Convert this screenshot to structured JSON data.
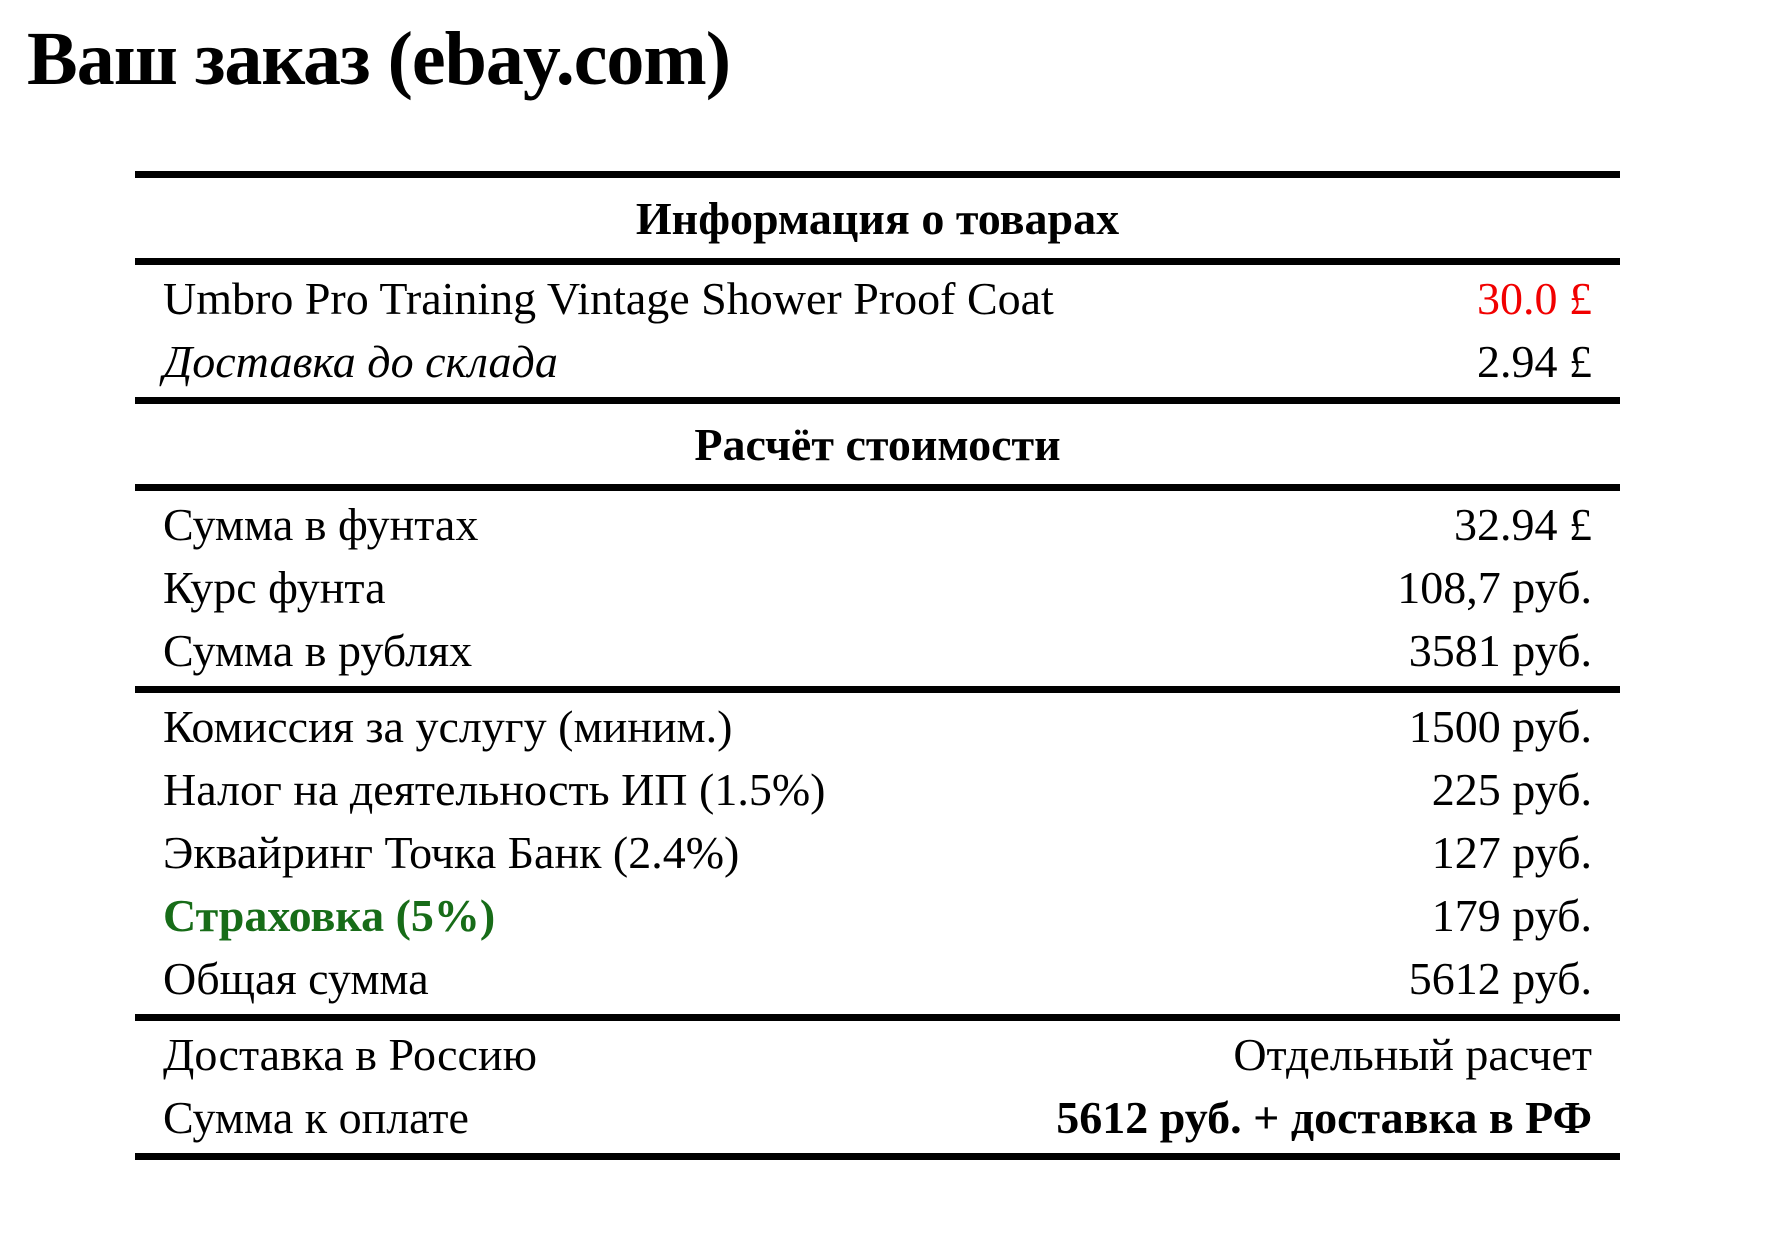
{
  "page": {
    "title": "Ваш заказ (ebay.com)"
  },
  "colors": {
    "background": "#ffffff",
    "text": "#000000",
    "rule": "#000000",
    "price_highlight_red": "#f10000",
    "insurance_green": "#176c18"
  },
  "table": {
    "sections": [
      {
        "header": "Информация о товарах",
        "rows": [
          {
            "label": "Umbro Pro Training Vintage Shower Proof Coat",
            "value": "30.0 £"
          },
          {
            "label": "Доставка до склада",
            "value": "2.94 £"
          }
        ]
      },
      {
        "header": "Расчёт стоимости",
        "rows": [
          {
            "label": "Сумма в фунтах",
            "value": "32.94 £"
          },
          {
            "label": "Курс фунта",
            "value": "108,7 руб."
          },
          {
            "label": "Сумма в рублях",
            "value": "3581 руб."
          }
        ]
      },
      {
        "rows": [
          {
            "label": "Комиссия за услугу (миним.)",
            "value": "1500 руб."
          },
          {
            "label": "Налог на деятельность ИП (1.5%)",
            "value": "225 руб."
          },
          {
            "label": "Эквайринг Точка Банк (2.4%)",
            "value": "127 руб."
          },
          {
            "label": "Страховка (5%)",
            "value": "179 руб."
          },
          {
            "label": "Общая сумма",
            "value": "5612 руб."
          }
        ]
      },
      {
        "rows": [
          {
            "label": "Доставка в Россию",
            "value": "Отдельный расчет"
          },
          {
            "label": "Сумма к оплате",
            "value": "5612 руб. + доставка в РФ"
          }
        ]
      }
    ]
  }
}
